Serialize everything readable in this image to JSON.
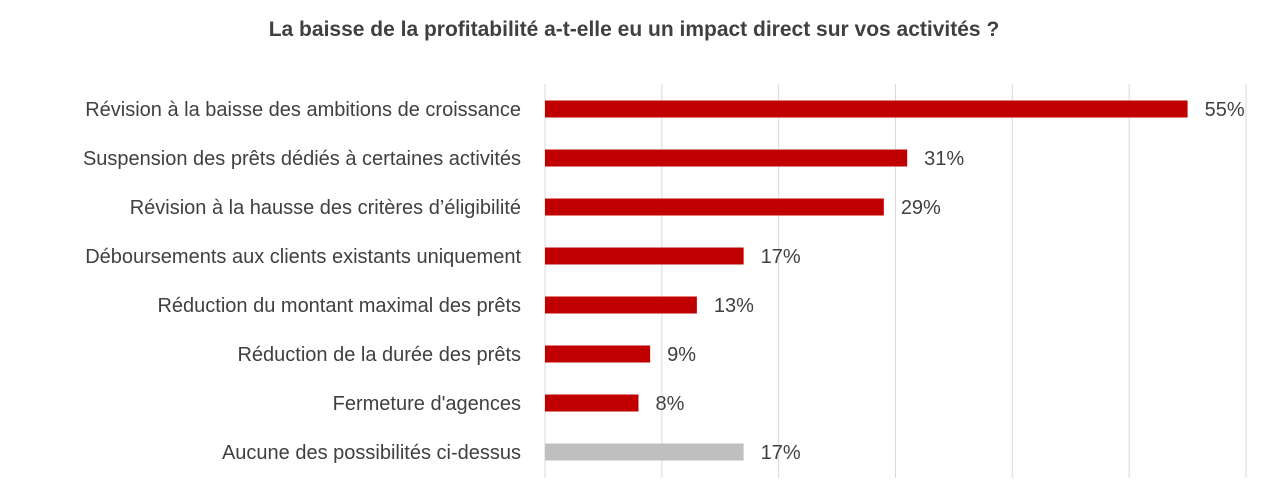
{
  "chart_data": {
    "type": "bar",
    "orientation": "horizontal",
    "title": "La baisse de la profitabilité a-t-elle eu un impact direct sur vos activités ?",
    "categories": [
      "Révision à la baisse des ambitions de croissance",
      "Suspension des prêts dédiés à certaines activités",
      "Révision à la hausse des critères d’éligibilité",
      "Déboursements aux clients existants uniquement",
      "Réduction du montant maximal des prêts",
      "Réduction de la durée des prêts ",
      "Fermeture d'agences",
      "Aucune des possibilités ci-dessus"
    ],
    "values": [
      55,
      31,
      29,
      17,
      13,
      9,
      8,
      17
    ],
    "value_labels": [
      "55%",
      "31%",
      "29%",
      "17%",
      "13%",
      "9%",
      "8%",
      "17%"
    ],
    "bar_colors": [
      "#c00000",
      "#c00000",
      "#c00000",
      "#c00000",
      "#c00000",
      "#c00000",
      "#c00000",
      "#bfbfbf"
    ],
    "xlim": [
      0,
      60
    ],
    "x_gridlines": [
      0,
      10,
      20,
      30,
      40,
      50,
      60
    ],
    "grid": true,
    "gridline_color": "#d9d9d9",
    "label_color": "#404040",
    "legend": "none"
  }
}
